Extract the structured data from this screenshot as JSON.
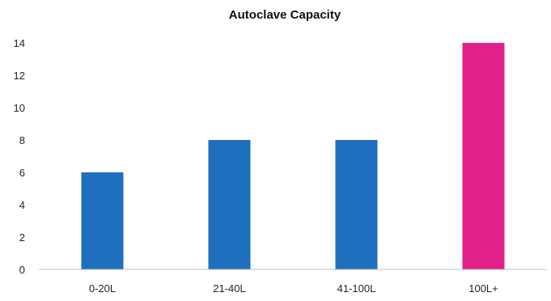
{
  "chart_data": {
    "type": "bar",
    "title": "Autoclave Capacity",
    "categories": [
      "0-20L",
      "21-40L",
      "41-100L",
      "100L+"
    ],
    "values": [
      6,
      8,
      8,
      14
    ],
    "bar_colors": [
      "#1f6fbf",
      "#1f6fbf",
      "#1f6fbf",
      "#e0218a"
    ],
    "ylim": [
      0,
      14
    ],
    "yticks": [
      0,
      2,
      4,
      6,
      8,
      10,
      12,
      14
    ],
    "grid": false,
    "legend": "none",
    "xlabel": "",
    "ylabel": ""
  }
}
